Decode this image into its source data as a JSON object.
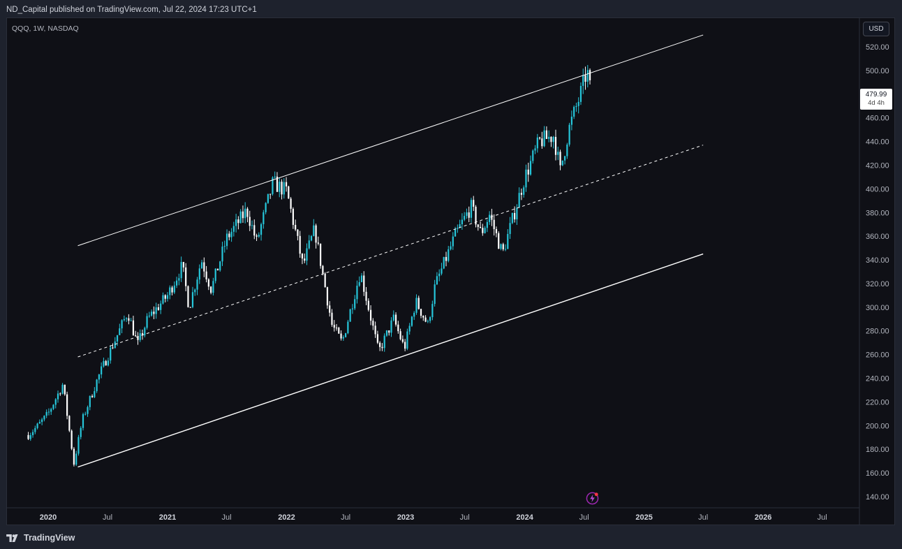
{
  "header": {
    "text": "ND_Capital published on TradingView.com, Jul 22, 2024 17:23 UTC+1"
  },
  "symbol": {
    "label": "QQQ, 1W, NASDAQ"
  },
  "currency": "USD",
  "last_price": {
    "value": "479.99",
    "countdown": "4d 4h"
  },
  "brand": {
    "name": "TradingView"
  },
  "colors": {
    "background": "#0f1016",
    "up": "#26c6da",
    "down": "#ffffff",
    "channel": "#ffffff"
  },
  "chart_data": {
    "type": "candlestick",
    "interval": "1W",
    "y_axis": {
      "range": [
        132,
        532
      ],
      "ticks": [
        "520.00",
        "500.00",
        "480.00",
        "460.00",
        "440.00",
        "420.00",
        "400.00",
        "380.00",
        "360.00",
        "340.00",
        "320.00",
        "300.00",
        "280.00",
        "260.00",
        "240.00",
        "220.00",
        "200.00",
        "180.00",
        "160.00",
        "140.00"
      ],
      "side": "right"
    },
    "x_axis": {
      "ticks": [
        {
          "label": "2020",
          "date": "2020-01-01",
          "year": true
        },
        {
          "label": "Jul",
          "date": "2020-07-01",
          "year": false
        },
        {
          "label": "2021",
          "date": "2021-01-01",
          "year": true
        },
        {
          "label": "Jul",
          "date": "2021-07-01",
          "year": false
        },
        {
          "label": "2022",
          "date": "2022-01-01",
          "year": true
        },
        {
          "label": "Jul",
          "date": "2022-07-01",
          "year": false
        },
        {
          "label": "2023",
          "date": "2023-01-01",
          "year": true
        },
        {
          "label": "Jul",
          "date": "2023-07-01",
          "year": false
        },
        {
          "label": "2024",
          "date": "2024-01-01",
          "year": true
        },
        {
          "label": "Jul",
          "date": "2024-07-01",
          "year": false
        },
        {
          "label": "2025",
          "date": "2025-01-01",
          "year": true
        },
        {
          "label": "Jul",
          "date": "2025-07-01",
          "year": false
        },
        {
          "label": "2026",
          "date": "2026-01-01",
          "year": true
        },
        {
          "label": "Jul",
          "date": "2026-07-01",
          "year": false
        }
      ]
    },
    "anchors": [
      {
        "date": "2019-11-01",
        "close": 192
      },
      {
        "date": "2019-12-01",
        "close": 200
      },
      {
        "date": "2020-01-01",
        "close": 210
      },
      {
        "date": "2020-02-15",
        "close": 235
      },
      {
        "date": "2020-03-20",
        "close": 168
      },
      {
        "date": "2020-04-15",
        "close": 205
      },
      {
        "date": "2020-06-01",
        "close": 240
      },
      {
        "date": "2020-09-01",
        "close": 296
      },
      {
        "date": "2020-10-01",
        "close": 268
      },
      {
        "date": "2020-11-01",
        "close": 290
      },
      {
        "date": "2021-01-01",
        "close": 310
      },
      {
        "date": "2021-02-15",
        "close": 335
      },
      {
        "date": "2021-03-08",
        "close": 300
      },
      {
        "date": "2021-04-15",
        "close": 340
      },
      {
        "date": "2021-05-15",
        "close": 315
      },
      {
        "date": "2021-07-01",
        "close": 358
      },
      {
        "date": "2021-09-01",
        "close": 382
      },
      {
        "date": "2021-10-01",
        "close": 355
      },
      {
        "date": "2021-11-20",
        "close": 405
      },
      {
        "date": "2022-01-01",
        "close": 398
      },
      {
        "date": "2022-02-20",
        "close": 335
      },
      {
        "date": "2022-03-28",
        "close": 366
      },
      {
        "date": "2022-05-20",
        "close": 285
      },
      {
        "date": "2022-06-20",
        "close": 270
      },
      {
        "date": "2022-08-15",
        "close": 330
      },
      {
        "date": "2022-10-10",
        "close": 262
      },
      {
        "date": "2022-11-25",
        "close": 290
      },
      {
        "date": "2022-12-28",
        "close": 265
      },
      {
        "date": "2023-02-01",
        "close": 305
      },
      {
        "date": "2023-03-10",
        "close": 285
      },
      {
        "date": "2023-04-01",
        "close": 318
      },
      {
        "date": "2023-06-01",
        "close": 360
      },
      {
        "date": "2023-07-20",
        "close": 385
      },
      {
        "date": "2023-08-20",
        "close": 362
      },
      {
        "date": "2023-09-15",
        "close": 378
      },
      {
        "date": "2023-10-25",
        "close": 345
      },
      {
        "date": "2023-12-31",
        "close": 409
      },
      {
        "date": "2024-02-15",
        "close": 440
      },
      {
        "date": "2024-03-30",
        "close": 445
      },
      {
        "date": "2024-04-19",
        "close": 415
      },
      {
        "date": "2024-05-15",
        "close": 450
      },
      {
        "date": "2024-06-20",
        "close": 480
      },
      {
        "date": "2024-07-10",
        "close": 500
      },
      {
        "date": "2024-07-22",
        "close": 480
      }
    ],
    "channel": {
      "upper": [
        {
          "date": "2020-04-01",
          "price": 352
        },
        {
          "date": "2025-07-01",
          "price": 530
        }
      ],
      "middle": [
        {
          "date": "2020-04-01",
          "price": 258
        },
        {
          "date": "2025-07-01",
          "price": 437
        }
      ],
      "lower": [
        {
          "date": "2020-04-01",
          "price": 165
        },
        {
          "date": "2025-07-01",
          "price": 345
        }
      ]
    }
  }
}
